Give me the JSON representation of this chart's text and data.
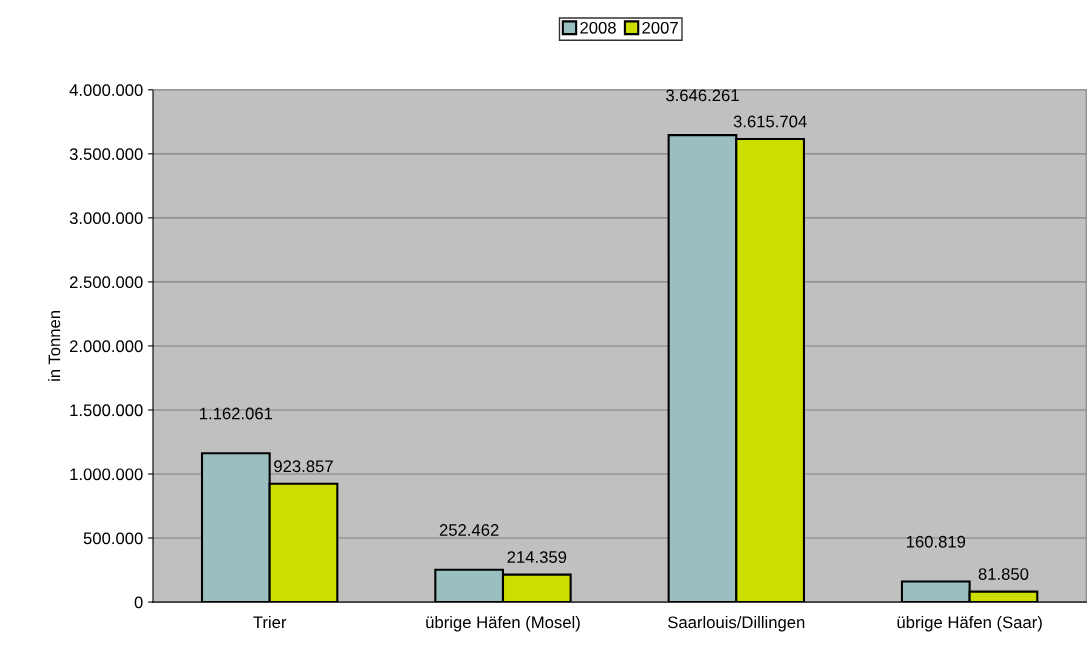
{
  "chart_data": {
    "type": "bar",
    "ylabel": "in Tonnen",
    "categories": [
      "Trier",
      "übrige Häfen (Mosel)",
      "Saarlouis/Dillingen",
      "übrige Häfen (Saar)"
    ],
    "series": [
      {
        "name": "2008",
        "color": "#99bfc0",
        "values": [
          1162061,
          252462,
          3646261,
          160819
        ],
        "value_labels": [
          "1.162.061",
          "252.462",
          "3.646.261",
          "160.819"
        ]
      },
      {
        "name": "2007",
        "color": "#ccdd00",
        "values": [
          923857,
          214359,
          3615704,
          81850
        ],
        "value_labels": [
          "923.857",
          "214.359",
          "3.615.704",
          "81.850"
        ]
      }
    ],
    "ylim": [
      0,
      4000000
    ],
    "yticks": [
      {
        "value": 0,
        "label": "0"
      },
      {
        "value": 500000,
        "label": "500.000"
      },
      {
        "value": 1000000,
        "label": "1.000.000"
      },
      {
        "value": 1500000,
        "label": "1.500.000"
      },
      {
        "value": 2000000,
        "label": "2.000.000"
      },
      {
        "value": 2500000,
        "label": "2.500.000"
      },
      {
        "value": 3000000,
        "label": "3.000.000"
      },
      {
        "value": 3500000,
        "label": "3.500.000"
      },
      {
        "value": 4000000,
        "label": "4.000.000"
      }
    ],
    "grid": "y",
    "legend": "top"
  }
}
